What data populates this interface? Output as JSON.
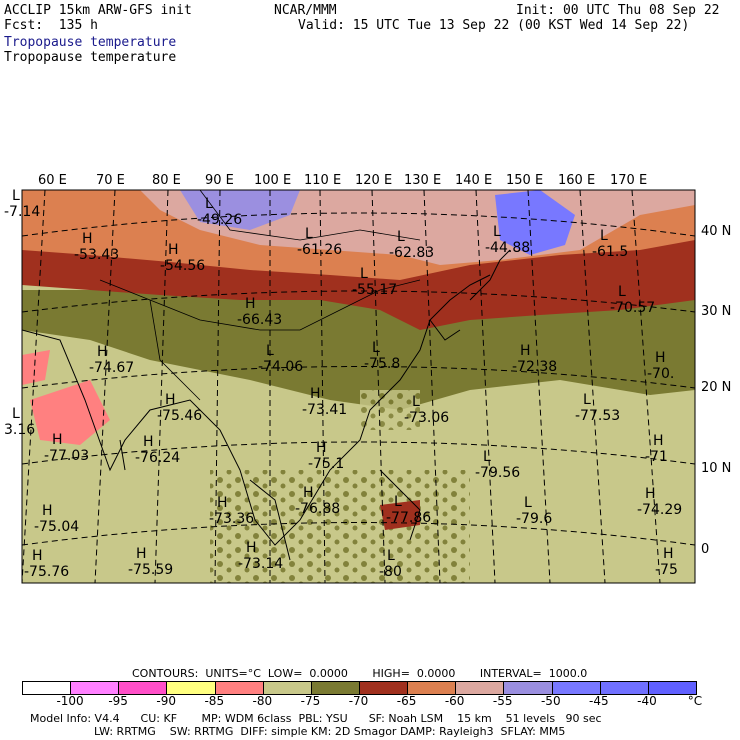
{
  "header": {
    "model": "ACCLIP 15km ARW-GFS init",
    "center": "NCAR/MMM",
    "init": "Init: 00 UTC Thu 08 Sep 22",
    "fcst": "Fcst:  135 h",
    "valid": "Valid: 15 UTC Tue 13 Sep 22 (00 KST Wed 14 Sep 22)",
    "field_shaded": "Tropopause temperature",
    "field_contour": "Tropopause temperature"
  },
  "map": {
    "lon_labels": [
      "60 E",
      "70 E",
      "80 E",
      "90 E",
      "100 E",
      "110 E",
      "120 E",
      "130 E",
      "140 E",
      "150 E",
      "160 E",
      "170 E"
    ],
    "lat_labels": [
      "40 N",
      "30 N",
      "20 N",
      "10 N",
      "0"
    ],
    "extrema": [
      {
        "type": "L",
        "value": "-49.26"
      },
      {
        "type": "L",
        "value": "-61.26"
      },
      {
        "type": "L",
        "value": "-62.83"
      },
      {
        "type": "L",
        "value": "-44.88"
      },
      {
        "type": "L",
        "value": "-61.5"
      },
      {
        "type": "H",
        "value": "-53.43"
      },
      {
        "type": "H",
        "value": "-54.56"
      },
      {
        "type": "L",
        "value": "-55.17"
      },
      {
        "type": "L",
        "value": "-70.57"
      },
      {
        "type": "H",
        "value": "-66.43"
      },
      {
        "type": "L",
        "value": "-74.06"
      },
      {
        "type": "L",
        "value": "-75.8"
      },
      {
        "type": "H",
        "value": "-74.67"
      },
      {
        "type": "H",
        "value": "-75.46"
      },
      {
        "type": "H",
        "value": "-73.41"
      },
      {
        "type": "L",
        "value": "-73.06"
      },
      {
        "type": "H",
        "value": "-72.38"
      },
      {
        "type": "H",
        "value": "-70."
      },
      {
        "type": "L",
        "value": "-77.53"
      },
      {
        "type": "H",
        "value": "-77.03"
      },
      {
        "type": "H",
        "value": "-76.24"
      },
      {
        "type": "H",
        "value": "-75.1"
      },
      {
        "type": "L",
        "value": "-79.56"
      },
      {
        "type": "H",
        "value": "-71"
      },
      {
        "type": "H",
        "value": "-75.04"
      },
      {
        "type": "H",
        "value": "-73.36"
      },
      {
        "type": "H",
        "value": "-76.88"
      },
      {
        "type": "L",
        "value": "-77.86"
      },
      {
        "type": "L",
        "value": "-79.6"
      },
      {
        "type": "H",
        "value": "-74.29"
      },
      {
        "type": "H",
        "value": "-75.59"
      },
      {
        "type": "H",
        "value": "-73.14"
      },
      {
        "type": "L",
        "value": "-80"
      },
      {
        "type": "H",
        "value": "-75"
      },
      {
        "type": "L",
        "value": "-7.14"
      },
      {
        "type": "L",
        "value": "3.16"
      },
      {
        "type": "H",
        "value": "-75.76"
      }
    ]
  },
  "legend": {
    "contours": "CONTOURS:  UNITS=°C  LOW=  0.0000       HIGH=  0.0000       INTERVAL=  1000.0",
    "colors": [
      "#ffffff",
      "#ff80ff",
      "#ff4fc8",
      "#ffff80",
      "#ff8080",
      "#c8c88a",
      "#7a7a32",
      "#a0301e",
      "#dc8050",
      "#dca8a0",
      "#9b8fe0",
      "#7878ff",
      "#7070ff",
      "#6060ff"
    ],
    "ticks": [
      "-100",
      "-95",
      "-90",
      "-85",
      "-80",
      "-75",
      "-70",
      "-65",
      "-60",
      "-55",
      "-50",
      "-45",
      "-40",
      "°C"
    ]
  },
  "footer": {
    "line1": "Model Info: V4.4      CU: KF       MP: WDM 6class  PBL: YSU      SF: Noah LSM    15 km    51 levels   90 sec",
    "line2": "LW: RRTMG    SW: RRTMG  DIFF: simple KM: 2D Smagor DAMP: Rayleigh3  SFLAY: MM5"
  }
}
